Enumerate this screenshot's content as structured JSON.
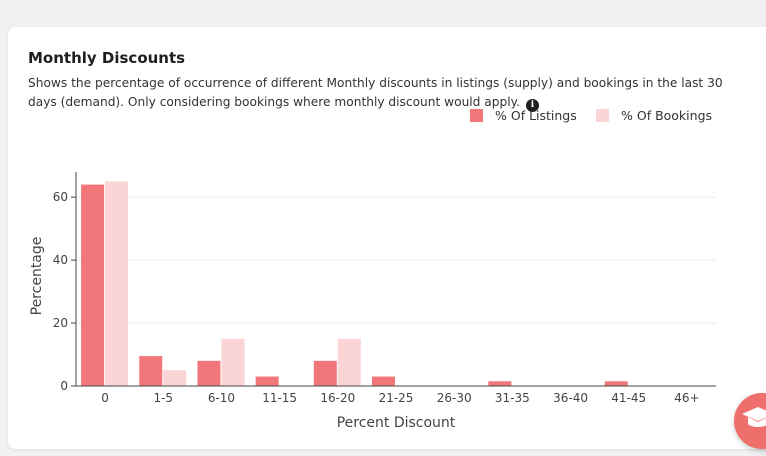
{
  "card": {
    "title": "Monthly Discounts",
    "description": "Shows the percentage of occurrence of different Monthly discounts in listings (supply) and bookings in the last 30 days (demand). Only considering bookings where monthly discount would apply.",
    "info_icon": "info-circle-icon"
  },
  "fab": {
    "icon": "graduation-cap-icon"
  },
  "colors": {
    "listings": "#f2777a",
    "bookings": "#fbd4d5",
    "fab": "#ef6f6c"
  },
  "chart_data": {
    "type": "bar",
    "categories": [
      "0",
      "1-5",
      "6-10",
      "11-15",
      "16-20",
      "21-25",
      "26-30",
      "31-35",
      "36-40",
      "41-45",
      "46+"
    ],
    "series": [
      {
        "name": "% Of Listings",
        "values": [
          64,
          9.5,
          8,
          3,
          8,
          3,
          0,
          1.5,
          0,
          1.5,
          0
        ]
      },
      {
        "name": "% Of Bookings",
        "values": [
          65,
          5,
          15,
          0,
          15,
          0,
          0,
          0,
          0,
          0,
          0
        ]
      }
    ],
    "title": "",
    "xlabel": "Percent Discount",
    "ylabel": "Percentage",
    "ylim": [
      0,
      68
    ],
    "yticks": [
      0,
      20,
      40,
      60
    ],
    "grid": true,
    "legend": "top-right"
  }
}
